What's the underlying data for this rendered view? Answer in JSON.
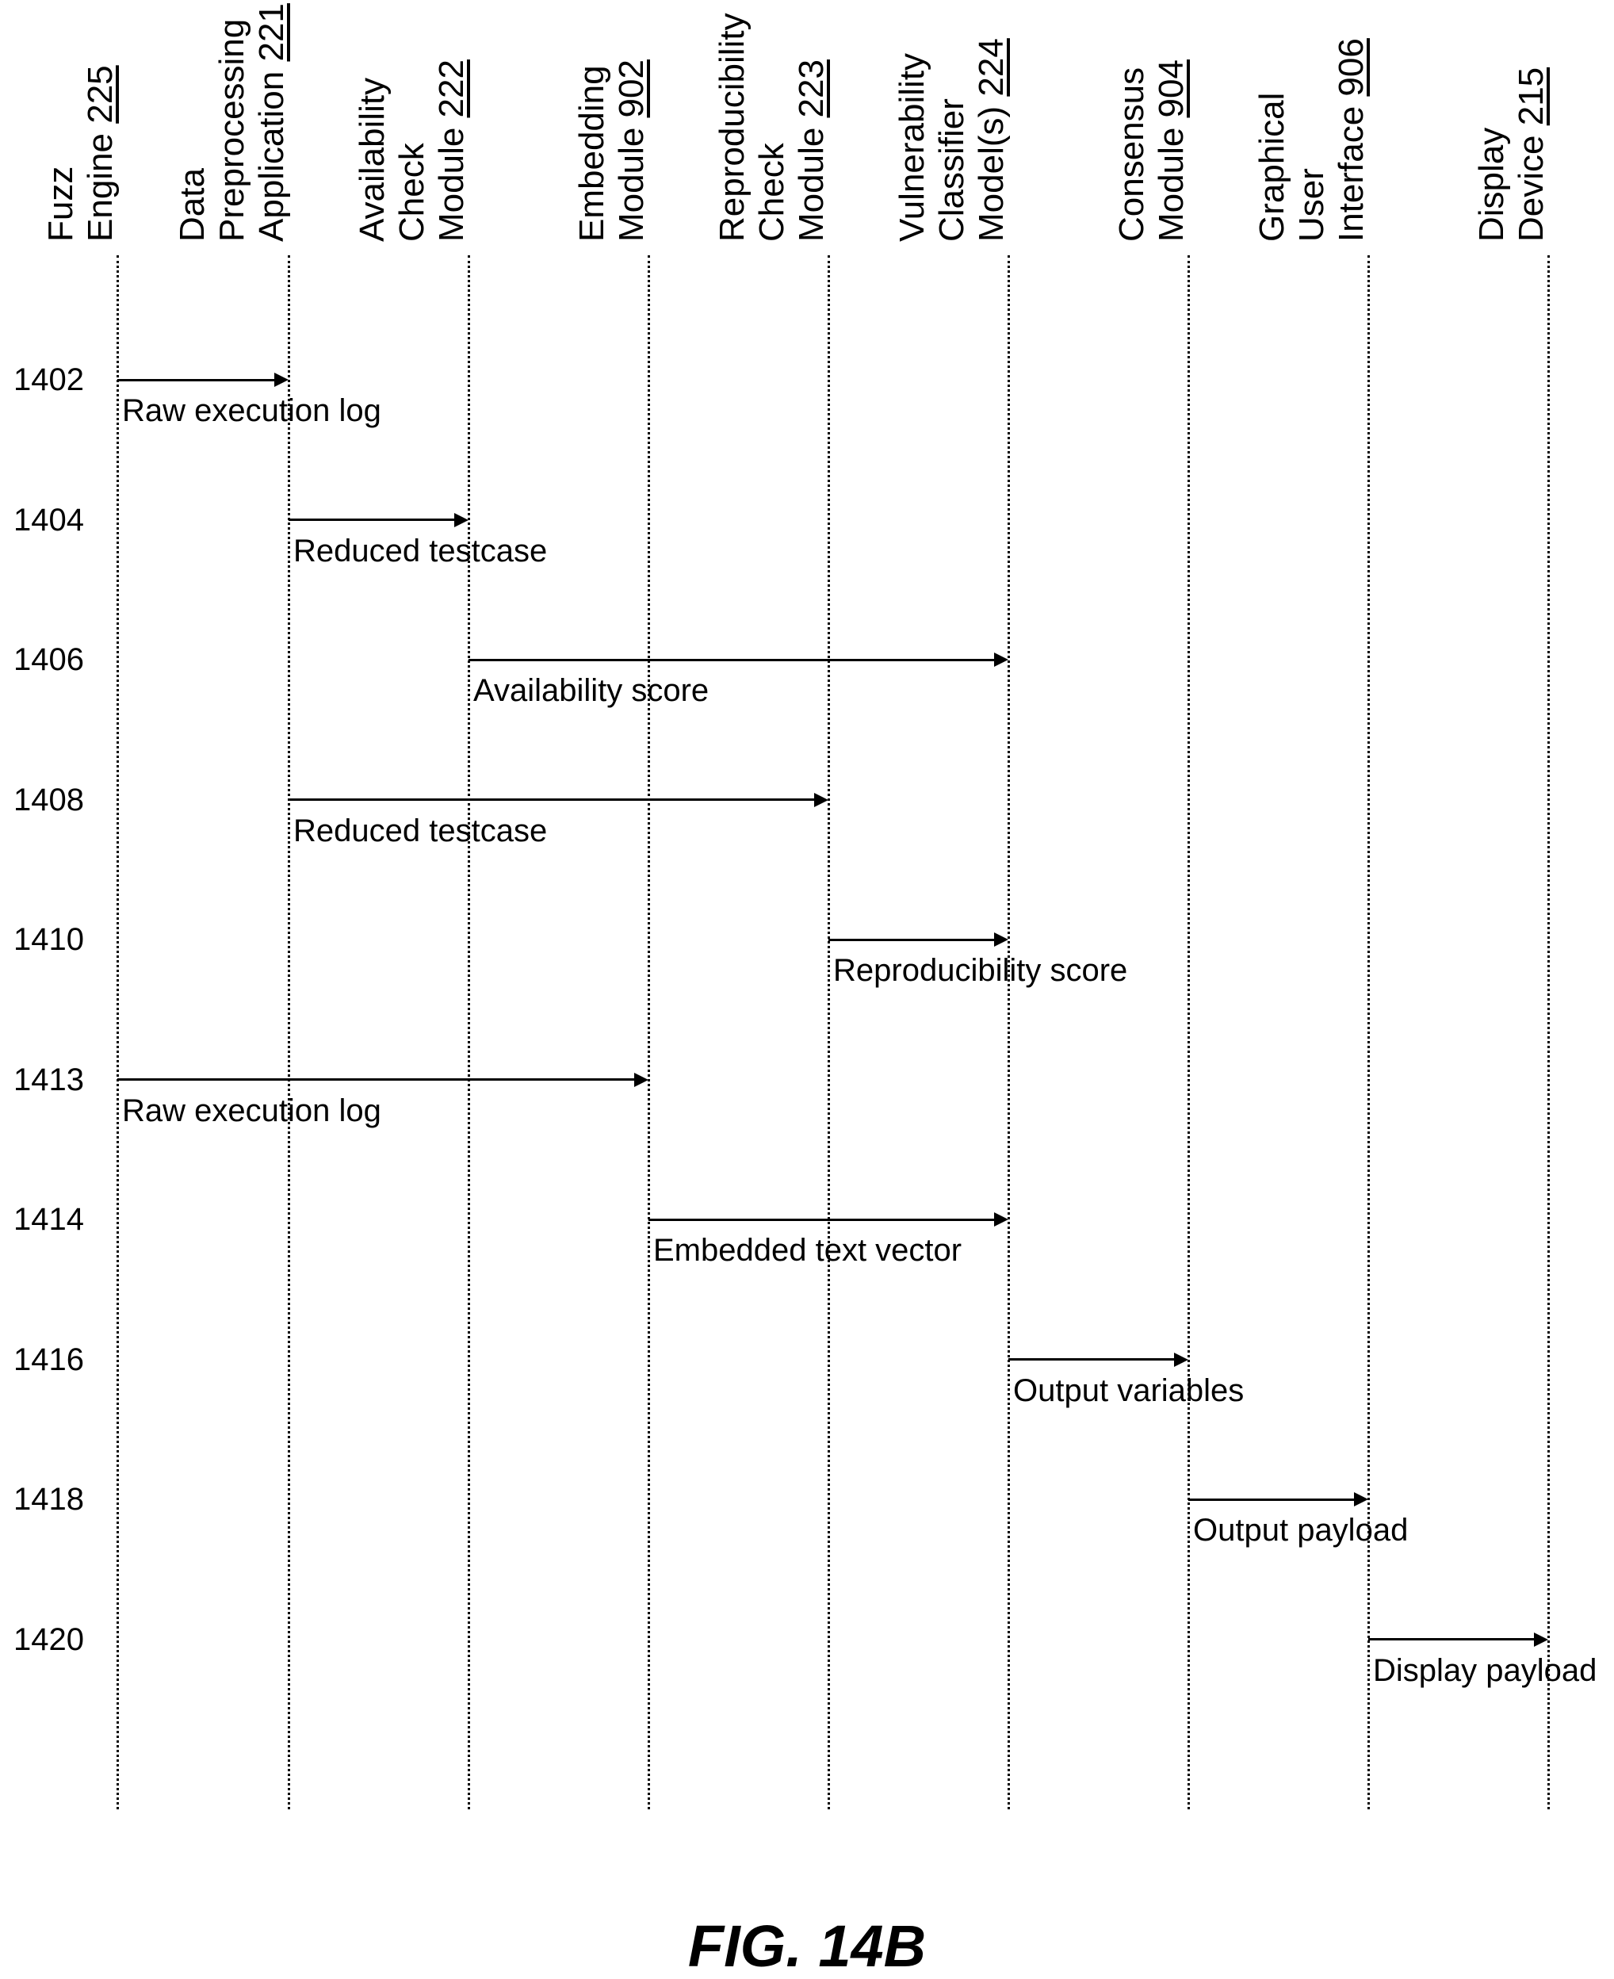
{
  "diagram": {
    "participants": [
      {
        "id": "fuzz",
        "lines": [
          {
            "text": "Fuzz",
            "ref": ""
          },
          {
            "text": "Engine ",
            "ref": "225"
          }
        ]
      },
      {
        "id": "preproc",
        "lines": [
          {
            "text": "Data",
            "ref": ""
          },
          {
            "text": "Preprocessing",
            "ref": ""
          },
          {
            "text": "Application ",
            "ref": "221"
          }
        ]
      },
      {
        "id": "avail",
        "lines": [
          {
            "text": "Availability",
            "ref": ""
          },
          {
            "text": "Check",
            "ref": ""
          },
          {
            "text": "Module ",
            "ref": "222"
          }
        ]
      },
      {
        "id": "embed",
        "lines": [
          {
            "text": "Embedding",
            "ref": ""
          },
          {
            "text": "Module ",
            "ref": "902"
          }
        ]
      },
      {
        "id": "repro",
        "lines": [
          {
            "text": "Reproducibility",
            "ref": ""
          },
          {
            "text": "Check",
            "ref": ""
          },
          {
            "text": "Module ",
            "ref": "223"
          }
        ]
      },
      {
        "id": "vuln",
        "lines": [
          {
            "text": "Vulnerability",
            "ref": ""
          },
          {
            "text": "Classifier",
            "ref": ""
          },
          {
            "text": "Model(s) ",
            "ref": "224"
          }
        ]
      },
      {
        "id": "consensus",
        "lines": [
          {
            "text": "Consensus",
            "ref": ""
          },
          {
            "text": "Module ",
            "ref": "904"
          }
        ]
      },
      {
        "id": "gui",
        "lines": [
          {
            "text": "Graphical",
            "ref": ""
          },
          {
            "text": "User",
            "ref": ""
          },
          {
            "text": "Interface ",
            "ref": "906"
          }
        ]
      },
      {
        "id": "display",
        "lines": [
          {
            "text": "Display",
            "ref": ""
          },
          {
            "text": "Device ",
            "ref": "215"
          }
        ]
      }
    ],
    "messages": [
      {
        "step": "1402",
        "from": 0,
        "to": 1,
        "label": "Raw execution log"
      },
      {
        "step": "1404",
        "from": 1,
        "to": 2,
        "label": "Reduced testcase"
      },
      {
        "step": "1406",
        "from": 2,
        "to": 5,
        "label": "Availability score"
      },
      {
        "step": "1408",
        "from": 1,
        "to": 4,
        "label": "Reduced testcase"
      },
      {
        "step": "1410",
        "from": 4,
        "to": 5,
        "label": "Reproducibility score"
      },
      {
        "step": "1413",
        "from": 0,
        "to": 3,
        "label": "Raw execution log"
      },
      {
        "step": "1414",
        "from": 3,
        "to": 5,
        "label": "Embedded text vector"
      },
      {
        "step": "1416",
        "from": 5,
        "to": 6,
        "label": "Output variables"
      },
      {
        "step": "1418",
        "from": 6,
        "to": 7,
        "label": "Output payload"
      },
      {
        "step": "1420",
        "from": 7,
        "to": 8,
        "label": "Display payload"
      }
    ],
    "figure_label": "FIG. 14B"
  }
}
